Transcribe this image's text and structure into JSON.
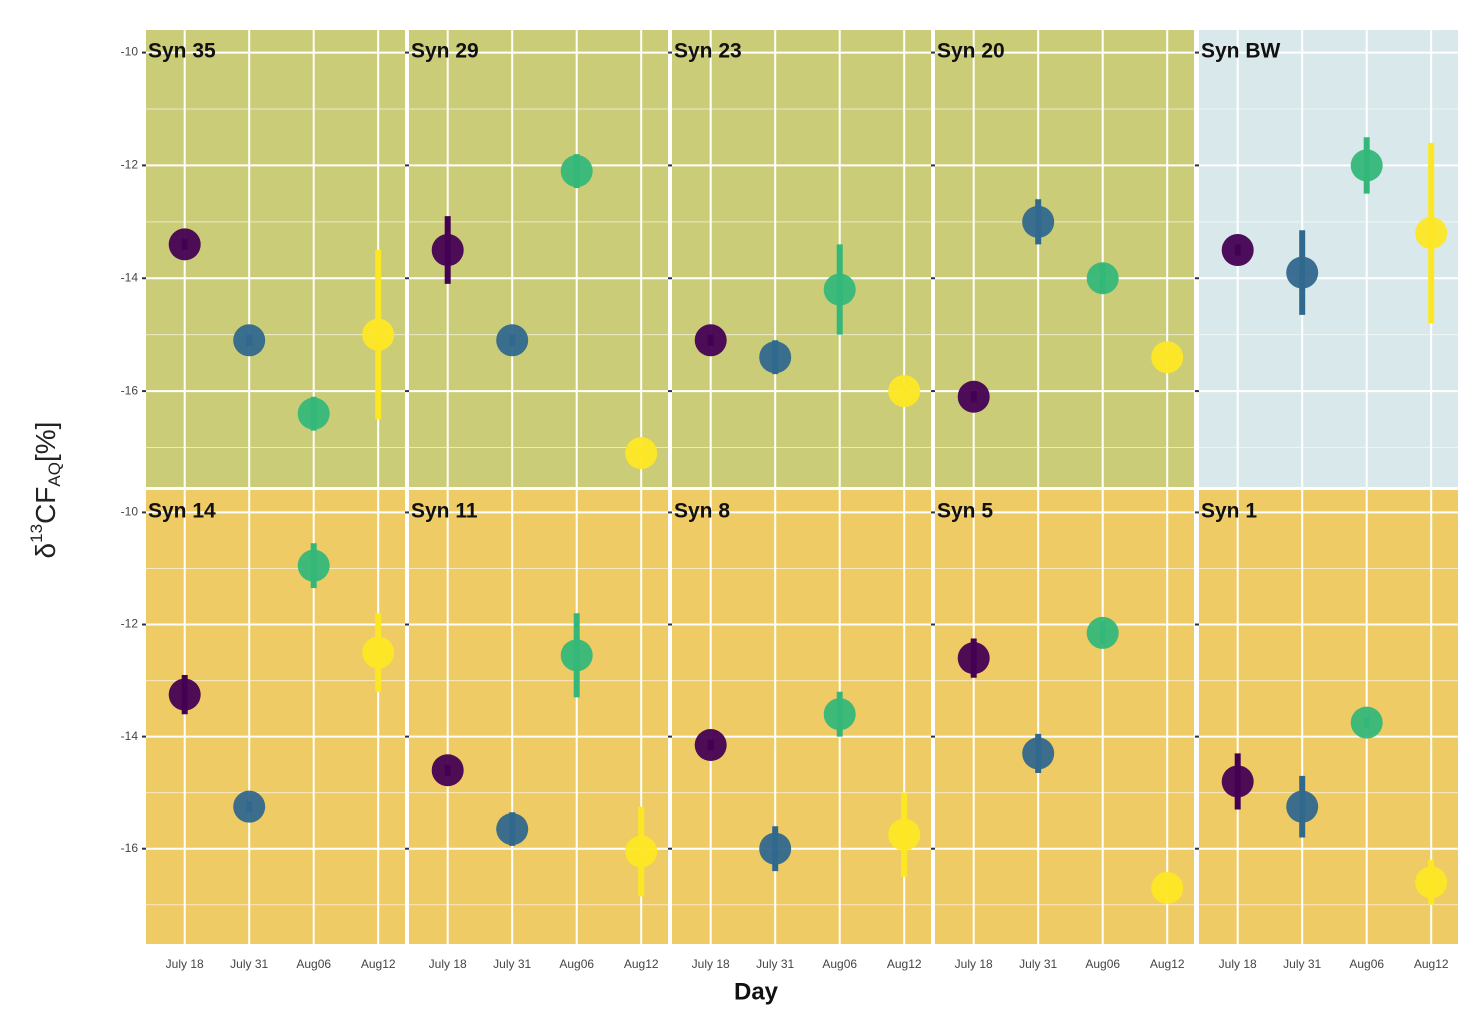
{
  "chart_data": {
    "type": "scatter",
    "xlabel": "Day",
    "ylabel": {
      "prefix": "δ",
      "sup": "13",
      "main": "CF",
      "sub": "AQ",
      "suffix": "[%]"
    },
    "categories": [
      "July 18",
      "July 31",
      "Aug06",
      "Aug12"
    ],
    "colors": [
      "#440154",
      "#31688e",
      "#35b779",
      "#fde725"
    ],
    "ylim": [
      -17.7,
      -9.6
    ],
    "yticks": [
      -10,
      -12,
      -14,
      -16
    ],
    "minor_yticks": [
      -11,
      -13,
      -15,
      -17
    ],
    "grid": true,
    "panels": [
      {
        "title": "Syn 35",
        "background": "#cbcc78",
        "values": [
          -13.4,
          -15.1,
          -16.4,
          -15.0
        ],
        "errors": [
          0.1,
          0.1,
          0.3,
          1.5
        ]
      },
      {
        "title": "Syn 29",
        "background": "#cbcc78",
        "values": [
          -13.5,
          -15.1,
          -12.1,
          -17.1
        ],
        "errors": [
          0.6,
          0.1,
          0.3,
          0.1
        ]
      },
      {
        "title": "Syn 23",
        "background": "#cbcc78",
        "values": [
          -15.1,
          -15.4,
          -14.2,
          -16.0
        ],
        "errors": [
          0.1,
          0.3,
          0.8,
          0.1
        ]
      },
      {
        "title": "Syn 20",
        "background": "#cbcc78",
        "values": [
          -16.1,
          -13.0,
          -14.0,
          -15.4
        ],
        "errors": [
          0.1,
          0.4,
          0.25,
          0.1
        ]
      },
      {
        "title": "Syn BW",
        "background": "#d9e8ea",
        "values": [
          -13.5,
          -13.9,
          -12.0,
          -13.2
        ],
        "errors": [
          0.1,
          0.75,
          0.5,
          1.6
        ]
      },
      {
        "title": "Syn 14",
        "background": "#eecb64",
        "values": [
          -13.25,
          -15.25,
          -10.95,
          -12.5
        ],
        "errors": [
          0.35,
          0.1,
          0.4,
          0.7
        ]
      },
      {
        "title": "Syn 11",
        "background": "#eecb64",
        "values": [
          -14.6,
          -15.65,
          -12.55,
          -16.05
        ],
        "errors": [
          0.1,
          0.3,
          0.75,
          0.8
        ]
      },
      {
        "title": "Syn 8",
        "background": "#eecb64",
        "values": [
          -14.15,
          -16.0,
          -13.6,
          -15.75
        ],
        "errors": [
          0.1,
          0.4,
          0.4,
          0.75
        ]
      },
      {
        "title": "Syn 5",
        "background": "#eecb64",
        "values": [
          -12.6,
          -14.3,
          -12.15,
          -16.7
        ],
        "errors": [
          0.35,
          0.35,
          0.2,
          0.1
        ]
      },
      {
        "title": "Syn 1",
        "background": "#eecb64",
        "values": [
          -14.8,
          -15.25,
          -13.75,
          -16.6
        ],
        "errors": [
          0.5,
          0.55,
          0.1,
          0.4
        ]
      }
    ]
  }
}
